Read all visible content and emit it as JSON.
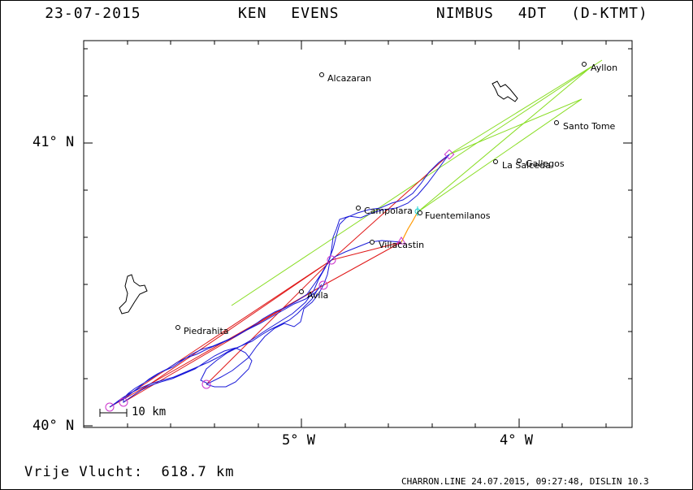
{
  "header": {
    "date": "23-07-2015",
    "pilot": "KEN EVENS",
    "glider": "NIMBUS 4DT (D-KTMT)"
  },
  "axes": {
    "lat_labels": [
      "41° N",
      "40° N"
    ],
    "lon_labels": [
      "5° W",
      "4° W"
    ]
  },
  "scale": {
    "label": "10 km"
  },
  "towns": [
    {
      "name": "Alcazaran"
    },
    {
      "name": "Ayllon"
    },
    {
      "name": "Santo Tome"
    },
    {
      "name": "La Salceda"
    },
    {
      "name": "Gallegos"
    },
    {
      "name": "Campolara"
    },
    {
      "name": "Fuentemilanos"
    },
    {
      "name": "Villacastin"
    },
    {
      "name": "Avila"
    },
    {
      "name": "Piedrahita"
    }
  ],
  "distance": {
    "label": "Vrije Vlucht:",
    "value": "618.7 km"
  },
  "footer": "CHARRON.LINE 24.07.2015, 09:27:48, DISLIN 10.3",
  "colors": {
    "track": "#1a1ad8",
    "task_red": "#e01818",
    "task_green": "#88dd22",
    "turnpoint": "#cc33cc",
    "tow": "#ff9900",
    "start": "#11cccc"
  }
}
